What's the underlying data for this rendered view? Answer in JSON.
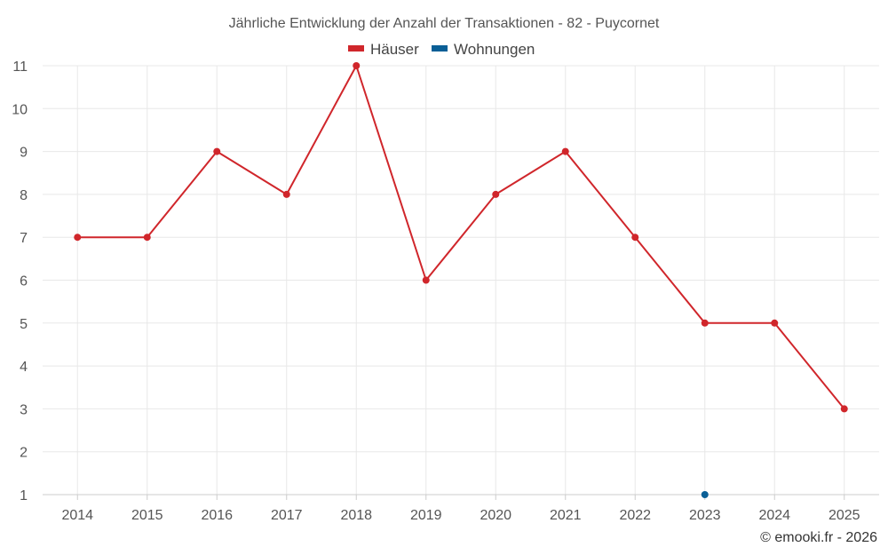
{
  "chart_data": {
    "type": "line",
    "title": "Jährliche Entwicklung der Anzahl der Transaktionen - 82 - Puycornet",
    "xlabel": "",
    "ylabel": "",
    "categories": [
      "2014",
      "2015",
      "2016",
      "2017",
      "2018",
      "2019",
      "2020",
      "2021",
      "2022",
      "2023",
      "2024",
      "2025"
    ],
    "ylim": [
      1,
      11
    ],
    "yticks": [
      1,
      2,
      3,
      4,
      5,
      6,
      7,
      8,
      9,
      10,
      11
    ],
    "grid": true,
    "legend_position": "top-center",
    "series": [
      {
        "name": "Häuser",
        "color": "#d0262b",
        "values": [
          7,
          7,
          9,
          8,
          11,
          6,
          8,
          9,
          7,
          5,
          5,
          3
        ]
      },
      {
        "name": "Wohnungen",
        "color": "#0a5f96",
        "values": [
          null,
          null,
          null,
          null,
          null,
          null,
          null,
          null,
          null,
          1,
          null,
          null
        ]
      }
    ],
    "credit": "© emooki.fr - 2026"
  }
}
